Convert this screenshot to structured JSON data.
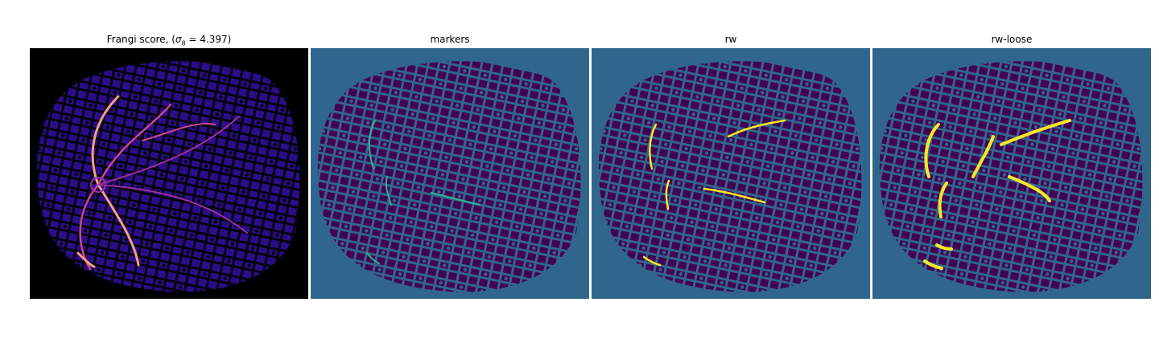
{
  "figure": {
    "panels": [
      {
        "id": "frangi",
        "title_prefix": "Frangi score, (",
        "title_sigma": "σ",
        "title_sub": "8",
        "title_suffix": " = 4.397)",
        "colormap": "magma",
        "background": "#000000"
      },
      {
        "id": "markers",
        "title": "markers",
        "colormap": "viridis",
        "background": "#31668c"
      },
      {
        "id": "rw",
        "title": "rw",
        "colormap": "viridis",
        "background": "#31668c"
      },
      {
        "id": "rw-loose",
        "title": "rw-loose",
        "colormap": "viridis",
        "background": "#31668c"
      }
    ],
    "colors": {
      "viridis_dark": "#440154",
      "viridis_mid": "#31668c",
      "viridis_teal": "#2fb48e",
      "viridis_yellow": "#fde725",
      "magma_dark": "#1b0b55",
      "magma_mid": "#4a10b0",
      "magma_hot": "#f3a07a"
    }
  }
}
